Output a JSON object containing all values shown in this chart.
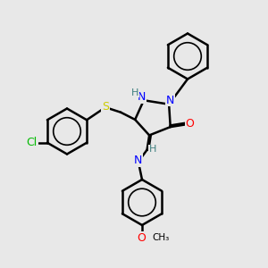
{
  "background_color": "#e8e8e8",
  "atom_colors": {
    "N": "#0000ff",
    "O": "#ff0000",
    "S": "#cccc00",
    "Cl": "#00bb00",
    "H": "#408080",
    "C": "#000000"
  },
  "line_width": 1.8,
  "font_size": 9
}
